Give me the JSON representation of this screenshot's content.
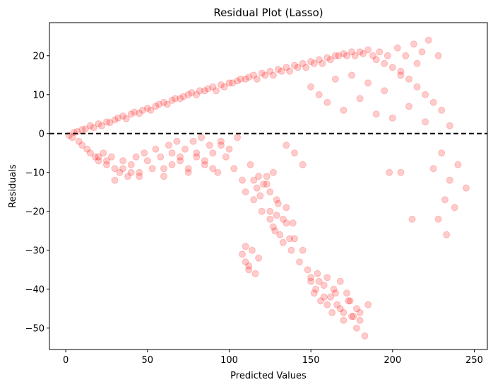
{
  "chart_data": {
    "type": "scatter",
    "title": "Residual Plot (Lasso)",
    "xlabel": "Predicted Values",
    "ylabel": "Residuals",
    "xlim": [
      -10,
      258
    ],
    "ylim": [
      -55.5,
      28.5
    ],
    "xticks": [
      0,
      50,
      100,
      150,
      200,
      250
    ],
    "yticks": [
      -50,
      -40,
      -30,
      -20,
      -10,
      0,
      10,
      20
    ],
    "reference_line": {
      "y": 0,
      "style": "dashed",
      "color": "#000000"
    },
    "marker": {
      "color": "#ff0000",
      "opacity": 0.2
    },
    "grid": false,
    "points": [
      [
        2,
        -0.5
      ],
      [
        4,
        -1
      ],
      [
        5,
        0.3
      ],
      [
        7,
        0.5
      ],
      [
        8,
        -2
      ],
      [
        10,
        1
      ],
      [
        10,
        -3
      ],
      [
        12,
        1.2
      ],
      [
        13,
        -4
      ],
      [
        15,
        2
      ],
      [
        15,
        -5
      ],
      [
        17,
        1.5
      ],
      [
        18,
        -6
      ],
      [
        20,
        2.5
      ],
      [
        20,
        -7
      ],
      [
        22,
        2
      ],
      [
        23,
        -5
      ],
      [
        25,
        3
      ],
      [
        25,
        -8
      ],
      [
        27,
        2.8
      ],
      [
        28,
        -6
      ],
      [
        30,
        3.5
      ],
      [
        30,
        -9
      ],
      [
        32,
        4
      ],
      [
        33,
        -10
      ],
      [
        35,
        4.5
      ],
      [
        35,
        -7
      ],
      [
        37,
        3.8
      ],
      [
        38,
        -11
      ],
      [
        40,
        5
      ],
      [
        40,
        -8
      ],
      [
        42,
        5.5
      ],
      [
        43,
        -6
      ],
      [
        45,
        5.2
      ],
      [
        45,
        -10
      ],
      [
        47,
        6
      ],
      [
        48,
        -5
      ],
      [
        50,
        6.5
      ],
      [
        50,
        -7
      ],
      [
        52,
        6
      ],
      [
        53,
        -9
      ],
      [
        55,
        7
      ],
      [
        55,
        -4
      ],
      [
        57,
        7.5
      ],
      [
        58,
        -6
      ],
      [
        60,
        8
      ],
      [
        60,
        -11
      ],
      [
        62,
        7.5
      ],
      [
        63,
        -3
      ],
      [
        65,
        8.5
      ],
      [
        65,
        -5
      ],
      [
        67,
        9
      ],
      [
        68,
        -2
      ],
      [
        70,
        9
      ],
      [
        70,
        -7
      ],
      [
        72,
        9.5
      ],
      [
        73,
        -4
      ],
      [
        75,
        10
      ],
      [
        75,
        -9
      ],
      [
        77,
        10.5
      ],
      [
        78,
        -2
      ],
      [
        80,
        10
      ],
      [
        80,
        -6
      ],
      [
        82,
        11
      ],
      [
        83,
        -1
      ],
      [
        85,
        11
      ],
      [
        85,
        -8
      ],
      [
        87,
        11.5
      ],
      [
        88,
        -3
      ],
      [
        90,
        12
      ],
      [
        90,
        -5
      ],
      [
        92,
        11
      ],
      [
        93,
        -10
      ],
      [
        95,
        12.5
      ],
      [
        95,
        -2
      ],
      [
        97,
        12
      ],
      [
        98,
        -6
      ],
      [
        100,
        13
      ],
      [
        100,
        -4
      ],
      [
        102,
        13
      ],
      [
        103,
        -9
      ],
      [
        105,
        13.5
      ],
      [
        105,
        -1
      ],
      [
        107,
        14
      ],
      [
        108,
        -12
      ],
      [
        110,
        14
      ],
      [
        110,
        -15
      ],
      [
        112,
        14.5
      ],
      [
        113,
        -8
      ],
      [
        115,
        15
      ],
      [
        115,
        -17
      ],
      [
        117,
        14
      ],
      [
        118,
        -11
      ],
      [
        120,
        15.5
      ],
      [
        120,
        -20
      ],
      [
        122,
        15
      ],
      [
        123,
        -13
      ],
      [
        125,
        16
      ],
      [
        125,
        -22
      ],
      [
        127,
        15
      ],
      [
        128,
        -25
      ],
      [
        130,
        16.5
      ],
      [
        130,
        -18
      ],
      [
        132,
        16
      ],
      [
        133,
        -28
      ],
      [
        135,
        17
      ],
      [
        135,
        -23
      ],
      [
        137,
        16
      ],
      [
        138,
        -30
      ],
      [
        140,
        17.5
      ],
      [
        140,
        -27
      ],
      [
        142,
        17
      ],
      [
        143,
        -33
      ],
      [
        145,
        18
      ],
      [
        145,
        -30
      ],
      [
        147,
        17
      ],
      [
        148,
        -35
      ],
      [
        150,
        18.5
      ],
      [
        150,
        -37
      ],
      [
        152,
        18
      ],
      [
        153,
        -40
      ],
      [
        155,
        19
      ],
      [
        155,
        -38
      ],
      [
        157,
        18
      ],
      [
        158,
        -42
      ],
      [
        160,
        19.5
      ],
      [
        160,
        -44
      ],
      [
        162,
        19
      ],
      [
        163,
        -46
      ],
      [
        165,
        20
      ],
      [
        165,
        -41
      ],
      [
        167,
        20
      ],
      [
        168,
        -45
      ],
      [
        170,
        20.5
      ],
      [
        170,
        -48
      ],
      [
        172,
        20
      ],
      [
        173,
        -43
      ],
      [
        175,
        21
      ],
      [
        175,
        -47
      ],
      [
        177,
        20
      ],
      [
        178,
        -50
      ],
      [
        180,
        21
      ],
      [
        180,
        -46
      ],
      [
        182,
        20.5
      ],
      [
        183,
        -52
      ],
      [
        185,
        21.5
      ],
      [
        185,
        -44
      ],
      [
        188,
        20
      ],
      [
        190,
        19
      ],
      [
        192,
        21
      ],
      [
        195,
        18
      ],
      [
        197,
        20
      ],
      [
        200,
        17
      ],
      [
        203,
        22
      ],
      [
        205,
        15
      ],
      [
        208,
        20
      ],
      [
        210,
        14
      ],
      [
        213,
        23
      ],
      [
        215,
        12
      ],
      [
        218,
        21
      ],
      [
        220,
        10
      ],
      [
        222,
        24
      ],
      [
        225,
        8
      ],
      [
        228,
        20
      ],
      [
        230,
        6
      ],
      [
        233,
        -26
      ],
      [
        235,
        2
      ],
      [
        238,
        -19
      ],
      [
        240,
        -8
      ],
      [
        245,
        -14
      ],
      [
        108,
        -31
      ],
      [
        110,
        -33
      ],
      [
        112,
        -35
      ],
      [
        114,
        -30
      ],
      [
        116,
        -36
      ],
      [
        118,
        -32
      ],
      [
        110,
        -29
      ],
      [
        112,
        -34
      ],
      [
        125,
        -20
      ],
      [
        127,
        -24
      ],
      [
        129,
        -21
      ],
      [
        131,
        -26
      ],
      [
        133,
        -22
      ],
      [
        135,
        -19
      ],
      [
        137,
        -27
      ],
      [
        139,
        -23
      ],
      [
        150,
        -38
      ],
      [
        152,
        -41
      ],
      [
        154,
        -36
      ],
      [
        156,
        -43
      ],
      [
        158,
        -39
      ],
      [
        160,
        -37
      ],
      [
        162,
        -42
      ],
      [
        164,
        -40
      ],
      [
        166,
        -44
      ],
      [
        168,
        -38
      ],
      [
        170,
        -46
      ],
      [
        172,
        -41
      ],
      [
        174,
        -43
      ],
      [
        176,
        -47
      ],
      [
        178,
        -45
      ],
      [
        180,
        -48
      ],
      [
        115,
        -12
      ],
      [
        117,
        -14
      ],
      [
        119,
        -16
      ],
      [
        121,
        -13
      ],
      [
        123,
        -11
      ],
      [
        125,
        -15
      ],
      [
        127,
        -10
      ],
      [
        129,
        -17
      ],
      [
        60,
        -9
      ],
      [
        65,
        -8
      ],
      [
        70,
        -6
      ],
      [
        75,
        -10
      ],
      [
        80,
        -5
      ],
      [
        85,
        -7
      ],
      [
        90,
        -9
      ],
      [
        95,
        -3
      ],
      [
        30,
        -12
      ],
      [
        35,
        -9
      ],
      [
        40,
        -10
      ],
      [
        45,
        -11
      ],
      [
        20,
        -6
      ],
      [
        25,
        -7
      ],
      [
        150,
        12
      ],
      [
        155,
        10
      ],
      [
        160,
        8
      ],
      [
        165,
        14
      ],
      [
        170,
        6
      ],
      [
        175,
        15
      ],
      [
        180,
        9
      ],
      [
        185,
        13
      ],
      [
        190,
        5
      ],
      [
        195,
        11
      ],
      [
        200,
        4
      ],
      [
        205,
        16
      ],
      [
        210,
        7
      ],
      [
        215,
        18
      ],
      [
        220,
        3
      ],
      [
        225,
        -9
      ],
      [
        230,
        -5
      ],
      [
        235,
        -12
      ],
      [
        228,
        -22
      ],
      [
        232,
        -17
      ],
      [
        212,
        -22
      ],
      [
        205,
        -10
      ],
      [
        198,
        -10
      ],
      [
        140,
        -5
      ],
      [
        145,
        -8
      ],
      [
        135,
        -3
      ]
    ]
  }
}
